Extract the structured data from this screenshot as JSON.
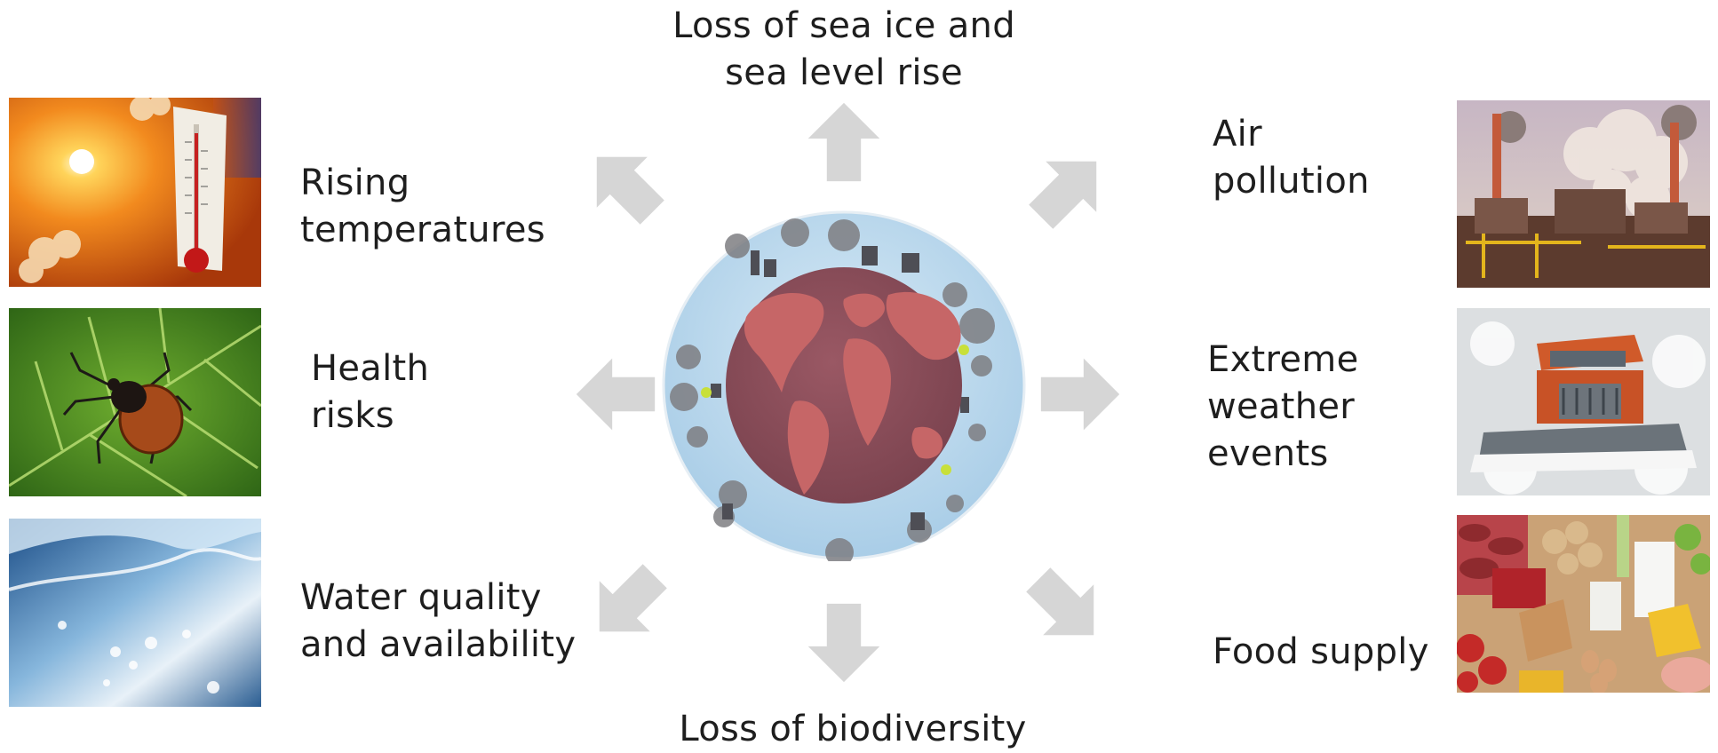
{
  "labels": {
    "top": "Loss of sea ice and\nsea level rise",
    "bottom": "Loss of biodiversity",
    "rising_temperatures": "Rising\ntemperatures",
    "health_risks": "Health\nrisks",
    "water": "Water quality\nand availability",
    "air_pollution": "Air\npollution",
    "extreme_weather": "Extreme\nweather\nevents",
    "food_supply": "Food supply"
  },
  "colors": {
    "arrow": "#d6d6d6",
    "globe_sky": "#b7d7ec",
    "globe_land": "#c26464",
    "globe_ocean": "#8e4f5a"
  },
  "images": {
    "thermometer": "sun-thermometer-photo",
    "tick": "tick-on-leaf-photo",
    "water": "water-splash-photo",
    "factory": "factory-smoke-photo",
    "snowplow": "snowplow-truck-photo",
    "food": "food-assortment-photo"
  }
}
